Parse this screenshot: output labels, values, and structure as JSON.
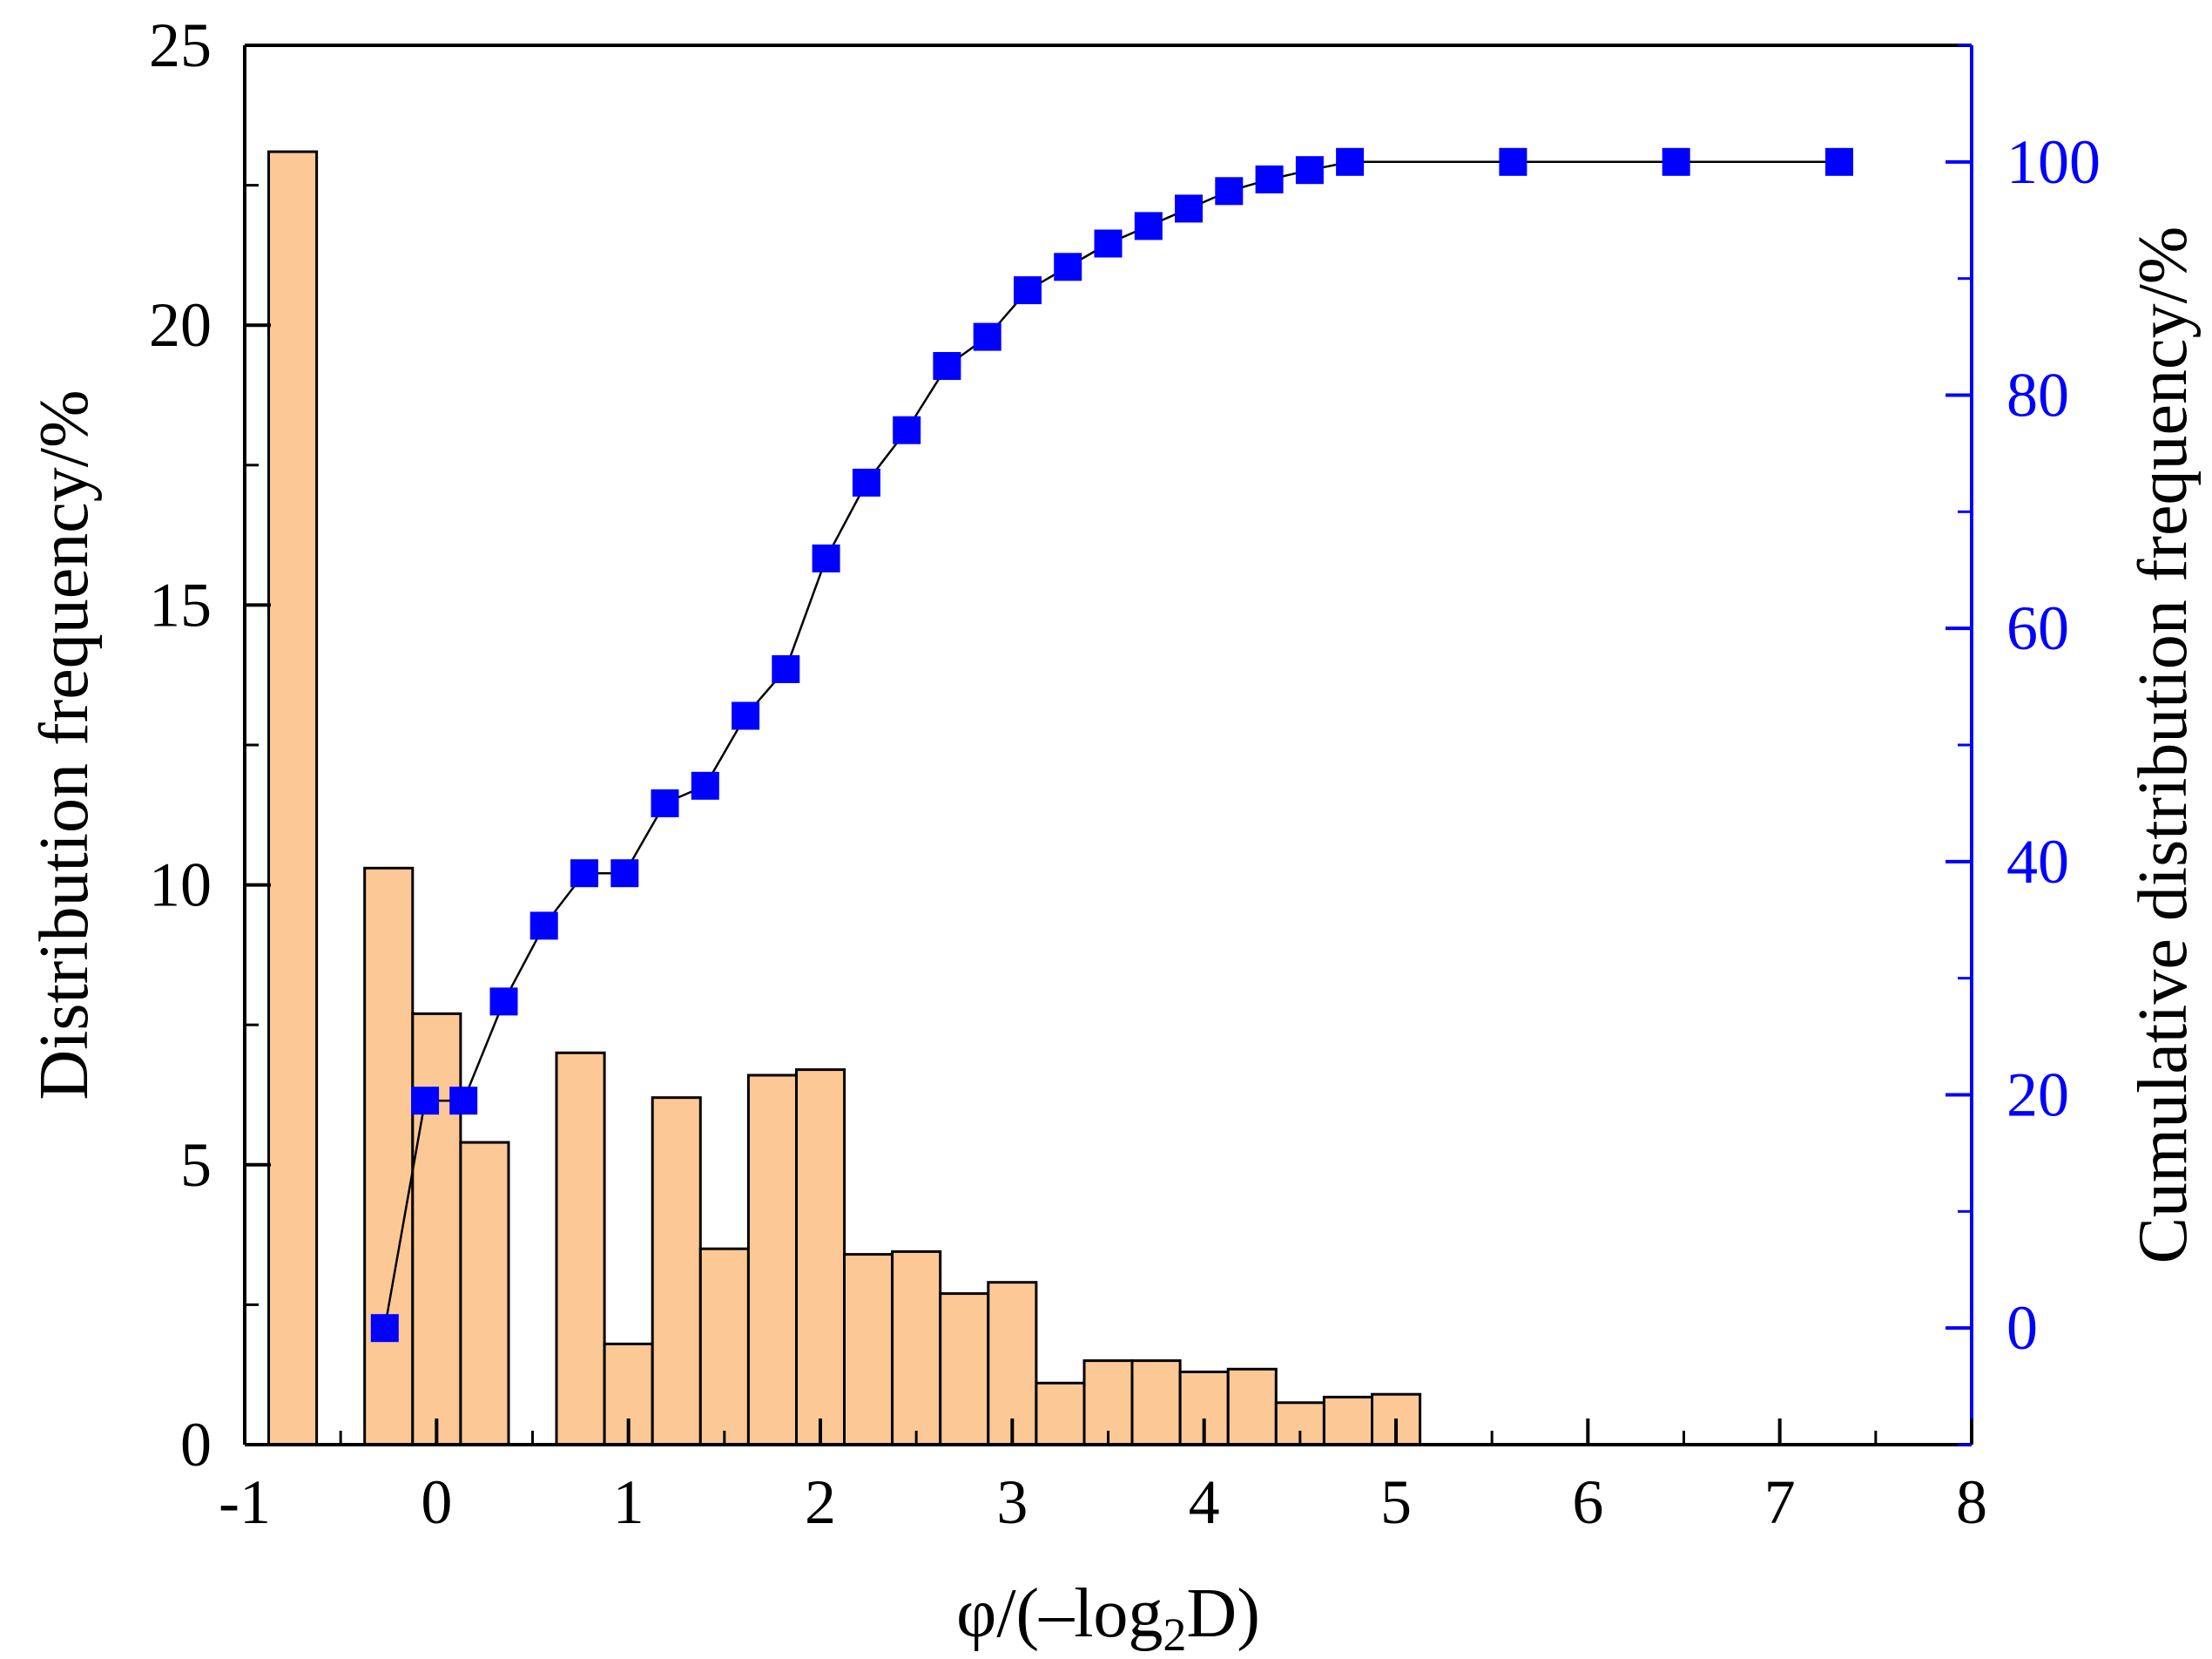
{
  "chart_data": {
    "type": "bar",
    "xlabel_prefix": "φ/(–log",
    "xlabel_sub": "2",
    "xlabel_suffix": "D)",
    "ylabel_left": "Distribution frequency/%",
    "ylabel_right": "Cumulative distribution frequency/%",
    "xlim": [
      -1,
      8
    ],
    "ylim_left": [
      0,
      25
    ],
    "ylim_right": [
      -10,
      110
    ],
    "x_ticks": [
      "-1",
      "0",
      "1",
      "2",
      "3",
      "4",
      "5",
      "6",
      "7",
      "8"
    ],
    "y_left_ticks": [
      "0",
      "5",
      "10",
      "15",
      "20",
      "25"
    ],
    "y_right_ticks": [
      "0",
      "20",
      "40",
      "60",
      "80",
      "100"
    ],
    "bar_color": "#FCC895",
    "bar_edge_color": "#000000",
    "marker_color": "#0000FF",
    "line_color": "#000000",
    "right_axis_color": "#0000FF",
    "bars": [
      {
        "x": -0.75,
        "width": 0.25,
        "value": 23.1
      },
      {
        "x": -0.25,
        "width": 0.25,
        "value": 10.3
      },
      {
        "x": 0.0,
        "width": 0.25,
        "value": 7.7
      },
      {
        "x": 0.25,
        "width": 0.25,
        "value": 5.4
      },
      {
        "x": 0.75,
        "width": 0.25,
        "value": 7.0
      },
      {
        "x": 1.0,
        "width": 0.25,
        "value": 1.8
      },
      {
        "x": 1.25,
        "width": 0.25,
        "value": 6.2
      },
      {
        "x": 1.5,
        "width": 0.25,
        "value": 3.5
      },
      {
        "x": 1.75,
        "width": 0.25,
        "value": 6.6
      },
      {
        "x": 2.0,
        "width": 0.25,
        "value": 6.7
      },
      {
        "x": 2.25,
        "width": 0.25,
        "value": 3.4
      },
      {
        "x": 2.5,
        "width": 0.25,
        "value": 3.45
      },
      {
        "x": 2.75,
        "width": 0.25,
        "value": 2.7
      },
      {
        "x": 3.0,
        "width": 0.25,
        "value": 2.9
      },
      {
        "x": 3.25,
        "width": 0.25,
        "value": 1.1
      },
      {
        "x": 3.5,
        "width": 0.25,
        "value": 1.5
      },
      {
        "x": 3.75,
        "width": 0.25,
        "value": 1.5
      },
      {
        "x": 4.0,
        "width": 0.25,
        "value": 1.3
      },
      {
        "x": 4.25,
        "width": 0.25,
        "value": 1.35
      },
      {
        "x": 4.5,
        "width": 0.25,
        "value": 0.75
      },
      {
        "x": 4.75,
        "width": 0.25,
        "value": 0.85
      },
      {
        "x": 5.0,
        "width": 0.25,
        "value": 0.9
      }
    ],
    "cumulative": {
      "x": [
        -0.27,
        -0.06,
        0.14,
        0.35,
        0.56,
        0.77,
        0.98,
        1.19,
        1.4,
        1.61,
        1.82,
        2.03,
        2.24,
        2.45,
        2.66,
        2.87,
        3.08,
        3.29,
        3.5,
        3.71,
        3.92,
        4.13,
        4.34,
        4.55,
        4.76,
        5.61,
        6.46,
        7.31
      ],
      "y": [
        0,
        19.5,
        19.5,
        28,
        34.5,
        39,
        39,
        45,
        46.5,
        52.5,
        56.5,
        66,
        72.5,
        77,
        82.5,
        85,
        89,
        91,
        93,
        94.5,
        96,
        97.5,
        98.5,
        99.3,
        100,
        100,
        100,
        100
      ]
    }
  }
}
